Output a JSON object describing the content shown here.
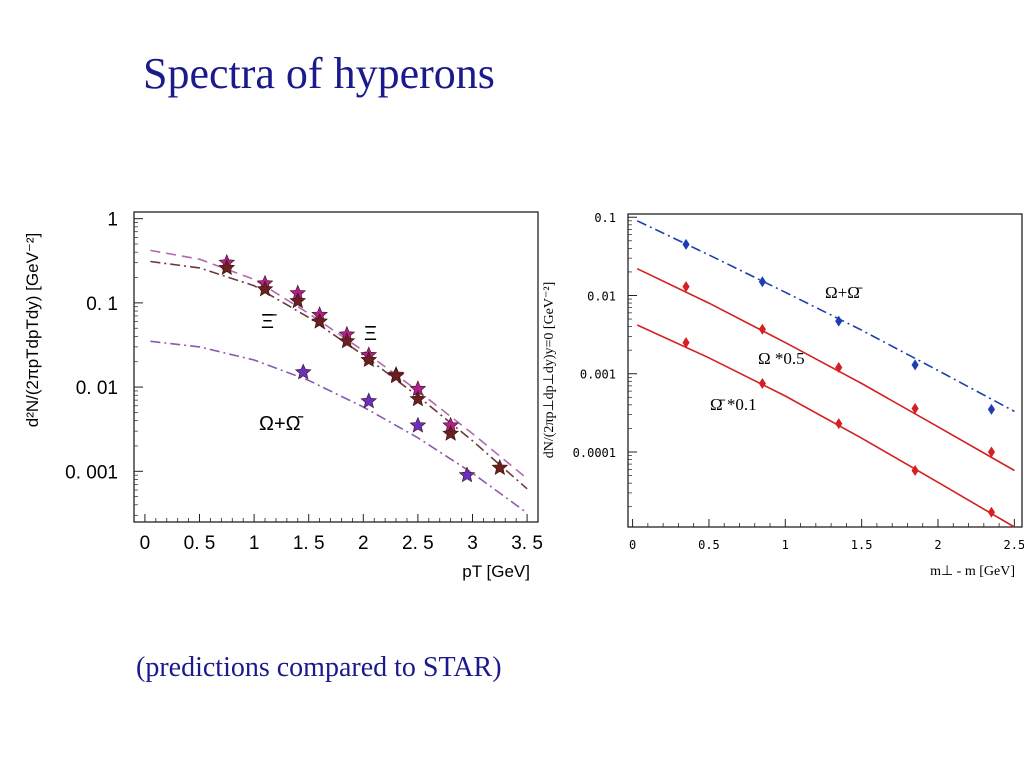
{
  "slide": {
    "title": "Spectra of hyperons",
    "caption": "(predictions compared to STAR)"
  },
  "chart_data": [
    {
      "type": "scatter",
      "xlabel": "pT [GeV]",
      "ylabel": "d²N/(2πpTdpTdy) [GeV⁻²]",
      "xlim": [
        -0.1,
        3.6
      ],
      "ylim": [
        0.00025,
        1.2
      ],
      "yscale": "log",
      "xticks": [
        0,
        0.5,
        1,
        1.5,
        2,
        2.5,
        3,
        3.5
      ],
      "xtick_labels": [
        "0",
        "0. 5",
        "1",
        "1. 5",
        "2",
        "2. 5",
        "3",
        "3. 5"
      ],
      "yticks": [
        1,
        0.1,
        0.01,
        0.001
      ],
      "ytick_labels": [
        "1",
        "0. 1",
        "0. 01",
        "0. 001"
      ],
      "annotations": [
        "Ξ̄",
        "Ξ",
        "Ω+Ω̄"
      ],
      "series": [
        {
          "marker": "star",
          "color": "#b0208f",
          "x": [
            0.75,
            1.1,
            1.4,
            1.6,
            1.85,
            2.05,
            2.3,
            2.5,
            2.8
          ],
          "y": [
            0.3,
            0.17,
            0.13,
            0.072,
            0.042,
            0.024,
            0.014,
            0.0095,
            0.0035
          ]
        },
        {
          "marker": "star",
          "color": "#6b2020",
          "x": [
            0.75,
            1.1,
            1.4,
            1.6,
            1.85,
            2.05,
            2.3,
            2.5,
            2.8,
            3.25
          ],
          "y": [
            0.26,
            0.145,
            0.105,
            0.06,
            0.035,
            0.021,
            0.0135,
            0.0072,
            0.0028,
            0.0011
          ]
        },
        {
          "marker": "star",
          "color": "#6a30c0",
          "x": [
            1.45,
            2.05,
            2.5,
            2.95
          ],
          "y": [
            0.015,
            0.0068,
            0.0035,
            0.0009
          ]
        },
        {
          "style": "dashed",
          "color": "#b06ab0",
          "x": [
            0.05,
            0.5,
            1.0,
            1.5,
            2.0,
            2.5,
            3.0,
            3.5
          ],
          "y": [
            0.42,
            0.33,
            0.19,
            0.075,
            0.027,
            0.009,
            0.0028,
            0.00082
          ]
        },
        {
          "style": "dash-dot",
          "color": "#6b3a3a",
          "x": [
            0.05,
            0.5,
            1.0,
            1.5,
            2.0,
            2.5,
            3.0,
            3.5
          ],
          "y": [
            0.31,
            0.26,
            0.16,
            0.067,
            0.024,
            0.0078,
            0.0023,
            0.00062
          ]
        },
        {
          "style": "dash-dot",
          "color": "#8a5ab0",
          "x": [
            0.05,
            0.5,
            1.0,
            1.5,
            2.0,
            2.5,
            3.0,
            3.5
          ],
          "y": [
            0.035,
            0.03,
            0.021,
            0.012,
            0.0058,
            0.0025,
            0.00095,
            0.00032
          ]
        }
      ]
    },
    {
      "type": "scatter",
      "xlabel": "m⊥ - m [GeV]",
      "ylabel": "dN/(2πp⊥dp⊥dy)y=0 [GeV⁻²]",
      "xlim": [
        -0.03,
        2.55
      ],
      "ylim": [
        1.1e-05,
        0.11
      ],
      "yscale": "log",
      "xticks": [
        0,
        0.5,
        1,
        1.5,
        2,
        2.5
      ],
      "xtick_labels": [
        "0",
        "0.5",
        "1",
        "1.5",
        "2",
        "2.5"
      ],
      "yticks": [
        0.1,
        0.01,
        0.001,
        0.0001
      ],
      "ytick_labels": [
        "0.1",
        "0.01",
        "0.001",
        "0.0001"
      ],
      "annotations": [
        "Ω+Ω̄",
        "Ω *0.5",
        "Ω̄ *0.1"
      ],
      "series": [
        {
          "name": "Ω+Ω̄",
          "marker": "diamond",
          "color": "#1b3fb0",
          "line": "dash-dot",
          "x": [
            0.35,
            0.85,
            1.35,
            1.85,
            2.35
          ],
          "y": [
            0.045,
            0.015,
            0.0047,
            0.0013,
            0.00035
          ],
          "fit_x": [
            0.03,
            0.5,
            1.0,
            1.5,
            2.0,
            2.5
          ],
          "fit_y": [
            0.09,
            0.033,
            0.011,
            0.0036,
            0.0011,
            0.00033
          ]
        },
        {
          "name": "Ω *0.5",
          "marker": "diamond",
          "color": "#d42020",
          "line": "solid",
          "x": [
            0.35,
            0.85,
            1.35,
            1.85,
            2.35
          ],
          "y": [
            0.013,
            0.0037,
            0.0012,
            0.00036,
            0.0001
          ],
          "fit_x": [
            0.03,
            0.5,
            1.0,
            1.5,
            2.0,
            2.5
          ],
          "fit_y": [
            0.022,
            0.008,
            0.0025,
            0.00075,
            0.00021,
            5.8e-05
          ]
        },
        {
          "name": "Ω̄ *0.1",
          "marker": "diamond",
          "color": "#d42020",
          "line": "solid",
          "x": [
            0.35,
            0.85,
            1.35,
            1.85,
            2.35
          ],
          "y": [
            0.0025,
            0.00075,
            0.00023,
            5.8e-05,
            1.7e-05
          ],
          "fit_x": [
            0.03,
            0.5,
            1.0,
            1.5,
            2.0,
            2.5
          ],
          "fit_y": [
            0.0042,
            0.0016,
            0.00052,
            0.00015,
            4.1e-05,
            1.1e-05
          ]
        }
      ]
    }
  ]
}
